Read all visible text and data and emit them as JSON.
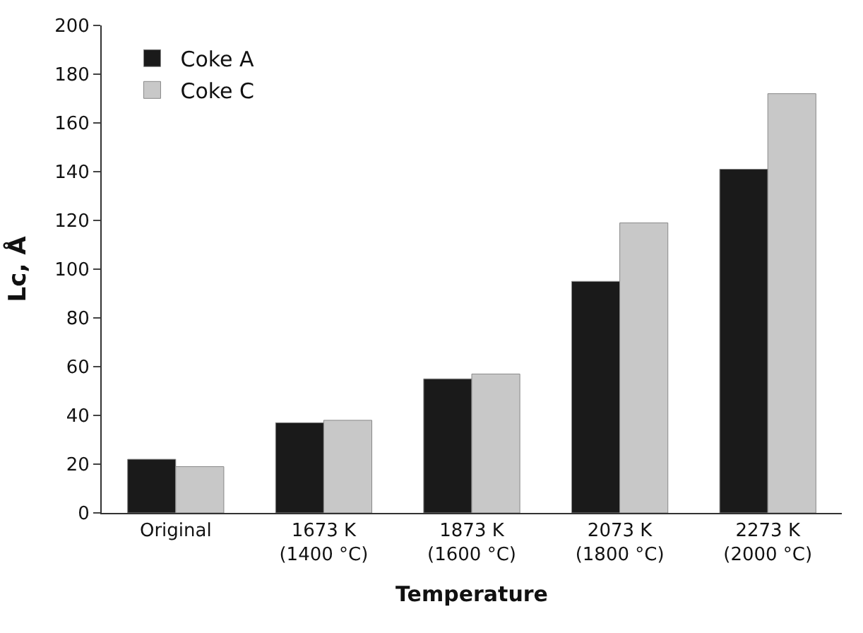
{
  "chart_data": {
    "type": "bar",
    "xlabel": "Temperature",
    "ylabel": "Lc, Å",
    "categories": [
      "Original",
      "1673 K\n(1400 °C)",
      "1873 K\n(1600 °C)",
      "2073 K\n(1800 °C)",
      "2273 K\n(2000 °C)"
    ],
    "series": [
      {
        "name": "Coke A",
        "color": "#1a1a1a",
        "values": [
          22,
          37,
          55,
          95,
          141
        ]
      },
      {
        "name": "Coke C",
        "color": "#c8c8c8",
        "values": [
          19,
          38,
          57,
          119,
          172
        ]
      }
    ],
    "ylim": [
      0,
      200
    ],
    "yticks": [
      0,
      20,
      40,
      60,
      80,
      100,
      120,
      140,
      160,
      180,
      200
    ],
    "legend": "top left"
  }
}
